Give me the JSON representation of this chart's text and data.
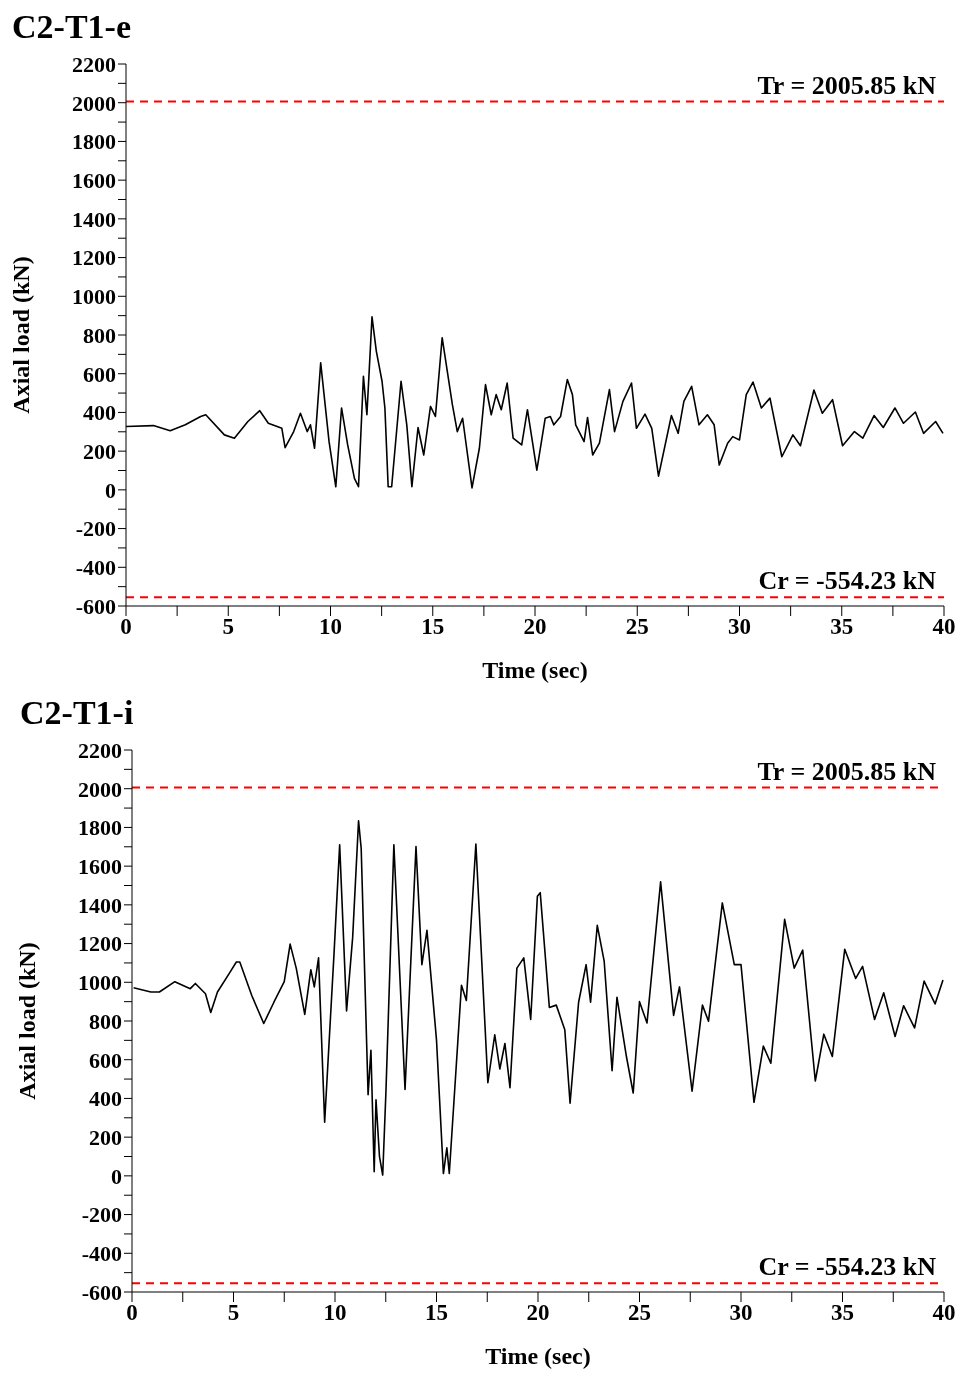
{
  "chart_data": [
    {
      "type": "line",
      "title": "C2-T1-e",
      "xlabel": "Time (sec)",
      "ylabel": "Axial load (kN)",
      "xlim": [
        0,
        40
      ],
      "xticks": [
        0,
        {
          "value": 2.5,
          "label": null
        },
        5,
        {
          "value": 7.5,
          "label": null
        },
        10,
        {
          "value": 12.5,
          "label": null
        },
        15,
        {
          "value": 17.5,
          "label": null
        },
        20,
        {
          "value": 22.5,
          "label": null
        },
        25,
        {
          "value": 27.5,
          "label": null
        },
        30,
        {
          "value": 32.5,
          "label": null
        },
        35,
        {
          "value": 37.5,
          "label": null
        },
        40
      ],
      "ylim": [
        -600,
        2200
      ],
      "yticks": [
        -600,
        {
          "value": -500,
          "label": null
        },
        -400,
        {
          "value": -300,
          "label": null
        },
        -200,
        {
          "value": -100,
          "label": null
        },
        0,
        {
          "value": 100,
          "label": null
        },
        200,
        {
          "value": 300,
          "label": null
        },
        400,
        {
          "value": 500,
          "label": null
        },
        600,
        {
          "value": 700,
          "label": null
        },
        800,
        {
          "value": 900,
          "label": null
        },
        1000,
        {
          "value": 1100,
          "label": null
        },
        1200,
        {
          "value": 1300,
          "label": null
        },
        1400,
        {
          "value": 1500,
          "label": null
        },
        1600,
        {
          "value": 1700,
          "label": null
        },
        1800,
        {
          "value": 1900,
          "label": null
        },
        2000,
        {
          "value": 2100,
          "label": null
        },
        2200
      ],
      "marker": "none",
      "line_style": "solid",
      "ref_lines": [
        {
          "axis": "y",
          "value": 2005.85,
          "label": "Tr = 2005.85 kN",
          "color": "#ff0000",
          "line_style": "dashed"
        },
        {
          "axis": "y",
          "value": -554.23,
          "label": "Cr = -554.23 kN",
          "color": "#ff0000",
          "line_style": "dashed"
        }
      ],
      "series": [
        {
          "color": "#000000",
          "x": [
            0,
            1.34,
            2.16,
            2.9,
            3.65,
            3.9,
            4.81,
            5.3,
            5.96,
            6.54,
            6.96,
            7.62,
            7.78,
            8.2,
            8.53,
            8.86,
            9.02,
            9.22,
            9.52,
            9.93,
            10.26,
            10.54,
            10.84,
            11.17,
            11.37,
            11.61,
            11.78,
            12.03,
            12.24,
            12.52,
            12.66,
            12.82,
            12.99,
            13.45,
            13.73,
            13.98,
            14.28,
            14.56,
            14.89,
            15.13,
            15.46,
            15.96,
            16.2,
            16.46,
            16.92,
            17.28,
            17.58,
            17.86,
            18.1,
            18.35,
            18.64,
            18.93,
            19.35,
            19.63,
            20.09,
            20.5,
            20.75,
            20.92,
            21.25,
            21.58,
            21.83,
            21.99,
            22.4,
            22.57,
            22.82,
            23.15,
            23.64,
            23.89,
            24.3,
            24.72,
            24.96,
            25.38,
            25.71,
            26.04,
            26.67,
            27.0,
            27.28,
            27.66,
            28.02,
            28.43,
            28.76,
            29.01,
            29.42,
            29.67,
            30.0,
            30.33,
            30.66,
            31.07,
            31.49,
            32.07,
            32.61,
            32.98,
            33.64,
            34.05,
            34.55,
            35.04,
            35.62,
            36.03,
            36.58,
            37.03,
            37.6,
            38.02,
            38.6,
            39.0,
            39.59,
            39.95
          ],
          "values": [
            327,
            332,
            305,
            336,
            379,
            388,
            284,
            267,
            353,
            409,
            344,
            318,
            218,
            301,
            396,
            301,
            336,
            215,
            656,
            249,
            16,
            423,
            232,
            59,
            16,
            587,
            388,
            894,
            717,
            561,
            423,
            16,
            16,
            561,
            336,
            16,
            322,
            180,
            431,
            379,
            786,
            440,
            301,
            370,
            10,
            215,
            544,
            388,
            492,
            414,
            552,
            267,
            232,
            414,
            102,
            370,
            379,
            336,
            379,
            570,
            492,
            336,
            249,
            374,
            180,
            241,
            518,
            301,
            457,
            552,
            318,
            391,
            318,
            71,
            384,
            292,
            457,
            535,
            336,
            388,
            336,
            128,
            241,
            275,
            258,
            492,
            557,
            423,
            474,
            171,
            284,
            228,
            516,
            396,
            466,
            228,
            301,
            267,
            384,
            322,
            423,
            344,
            402,
            292,
            353,
            292
          ]
        }
      ]
    },
    {
      "type": "line",
      "title": "C2-T1-i",
      "xlabel": "Time (sec)",
      "ylabel": "Axial load (kN)",
      "xlim": [
        0,
        40
      ],
      "xticks": [
        0,
        {
          "value": 2.5,
          "label": null
        },
        5,
        {
          "value": 7.5,
          "label": null
        },
        10,
        {
          "value": 12.5,
          "label": null
        },
        15,
        {
          "value": 17.5,
          "label": null
        },
        20,
        {
          "value": 22.5,
          "label": null
        },
        25,
        {
          "value": 27.5,
          "label": null
        },
        30,
        {
          "value": 32.5,
          "label": null
        },
        35,
        {
          "value": 37.5,
          "label": null
        },
        40
      ],
      "ylim": [
        -600,
        2200
      ],
      "yticks": [
        -600,
        {
          "value": -500,
          "label": null
        },
        -400,
        {
          "value": -300,
          "label": null
        },
        -200,
        {
          "value": -100,
          "label": null
        },
        0,
        {
          "value": 100,
          "label": null
        },
        200,
        {
          "value": 300,
          "label": null
        },
        400,
        {
          "value": 500,
          "label": null
        },
        600,
        {
          "value": 700,
          "label": null
        },
        800,
        {
          "value": 900,
          "label": null
        },
        1000,
        {
          "value": 1100,
          "label": null
        },
        1200,
        {
          "value": 1300,
          "label": null
        },
        1400,
        {
          "value": 1500,
          "label": null
        },
        1600,
        {
          "value": 1700,
          "label": null
        },
        1800,
        {
          "value": 1900,
          "label": null
        },
        2000,
        {
          "value": 2100,
          "label": null
        },
        2200
      ],
      "marker": "none",
      "line_style": "solid",
      "ref_lines": [
        {
          "axis": "y",
          "value": 2005.85,
          "label": "Tr = 2005.85 kN",
          "color": "#ff0000",
          "line_style": "dashed"
        },
        {
          "axis": "y",
          "value": -554.23,
          "label": "Cr = -554.23 kN",
          "color": "#ff0000",
          "line_style": "dashed"
        }
      ],
      "series": [
        {
          "color": "#000000",
          "x": [
            0.08,
            0.93,
            1.35,
            2.11,
            2.87,
            3.12,
            3.62,
            3.88,
            4.21,
            4.8,
            5.14,
            5.31,
            5.9,
            6.49,
            6.99,
            7.5,
            7.79,
            8.09,
            8.51,
            8.81,
            8.98,
            9.19,
            9.49,
            9.95,
            10.23,
            10.57,
            10.87,
            11.16,
            11.29,
            11.63,
            11.77,
            11.93,
            12.02,
            12.19,
            12.35,
            12.51,
            12.9,
            13.45,
            13.99,
            14.28,
            14.53,
            15.0,
            15.34,
            15.51,
            15.63,
            16.23,
            16.47,
            16.94,
            17.53,
            17.87,
            18.12,
            18.37,
            18.62,
            18.96,
            19.3,
            19.64,
            19.97,
            20.11,
            20.56,
            20.9,
            21.32,
            21.58,
            22.0,
            22.37,
            22.59,
            22.92,
            23.26,
            23.65,
            23.89,
            24.36,
            24.69,
            25.0,
            25.37,
            26.04,
            26.68,
            26.97,
            27.59,
            28.1,
            28.4,
            29.08,
            29.67,
            30.0,
            30.64,
            31.1,
            31.47,
            32.15,
            32.62,
            33.04,
            33.66,
            34.08,
            34.5,
            35.11,
            35.65,
            35.99,
            36.58,
            37.03,
            37.59,
            38.01,
            38.55,
            39.02,
            39.56,
            39.95
          ],
          "values": [
            972,
            950,
            950,
            1003,
            967,
            994,
            941,
            844,
            950,
            1047,
            1105,
            1105,
            932,
            787,
            897,
            1003,
            1197,
            1073,
            834,
            1065,
            976,
            1126,
            277,
            1144,
            1710,
            852,
            1232,
            1834,
            1692,
            419,
            649,
            21,
            393,
            101,
            4,
            437,
            1710,
            446,
            1701,
            1091,
            1268,
            702,
            12,
            145,
            12,
            985,
            906,
            1714,
            481,
            729,
            552,
            684,
            455,
            1073,
            1126,
            808,
            1445,
            1463,
            870,
            882,
            755,
            375,
            897,
            1091,
            897,
            1294,
            1109,
            543,
            923,
            614,
            428,
            900,
            790,
            1519,
            829,
            976,
            437,
            882,
            799,
            1410,
            1091,
            1091,
            380,
            670,
            582,
            1325,
            1073,
            1166,
            490,
            732,
            617,
            1171,
            1020,
            1082,
            808,
            946,
            720,
            879,
            764,
            1006,
            888,
            1012
          ]
        }
      ]
    }
  ]
}
